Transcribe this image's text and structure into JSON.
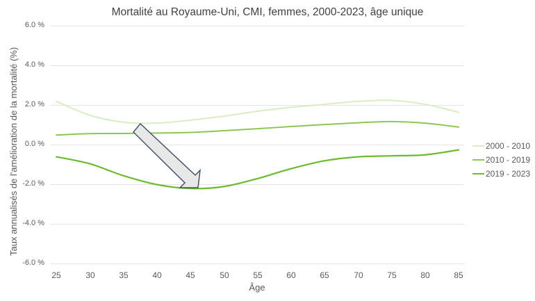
{
  "chart_data": {
    "type": "line",
    "title": "Mortalité au Royaume-Uni, CMI, femmes, 2000-2023, âge unique",
    "xlabel": "Âge",
    "ylabel": "Taux annualisés de l'amélioration de la mortalité (%)",
    "x": [
      25,
      30,
      35,
      40,
      45,
      50,
      55,
      60,
      65,
      70,
      75,
      80,
      85
    ],
    "xlim": [
      25,
      85
    ],
    "ylim": [
      -6.0,
      6.0
    ],
    "y_ticks": [
      "6.0 %",
      "4.0 %",
      "2.0 %",
      "0.0 %",
      "-2.0 %",
      "-4.0 %",
      "-6.0 %"
    ],
    "x_ticks": [
      "25",
      "30",
      "35",
      "40",
      "45",
      "50",
      "55",
      "60",
      "65",
      "70",
      "75",
      "80",
      "85"
    ],
    "grid": "horizontal",
    "legend_position": "right",
    "series": [
      {
        "name": "2000 - 2010",
        "color": "#d9ecc5",
        "values": [
          2.2,
          1.5,
          1.15,
          1.1,
          1.25,
          1.45,
          1.7,
          1.9,
          2.05,
          2.2,
          2.25,
          2.05,
          1.65
        ]
      },
      {
        "name": "2010 - 2019",
        "color": "#8cc751",
        "values": [
          0.5,
          0.57,
          0.58,
          0.6,
          0.63,
          0.72,
          0.82,
          0.93,
          1.03,
          1.12,
          1.18,
          1.1,
          0.9
        ]
      },
      {
        "name": "2019 - 2023",
        "color": "#6cbb2f",
        "values": [
          -0.6,
          -0.95,
          -1.55,
          -2.0,
          -2.2,
          -2.1,
          -1.7,
          -1.2,
          -0.8,
          -0.6,
          -0.55,
          -0.5,
          -0.25
        ]
      }
    ],
    "annotations": [
      {
        "type": "arrow",
        "description": "block arrow pointing down-right toward minimum of 2019-2023 curve",
        "fill": "#e8e8e8",
        "stroke": "#44546a"
      }
    ]
  }
}
